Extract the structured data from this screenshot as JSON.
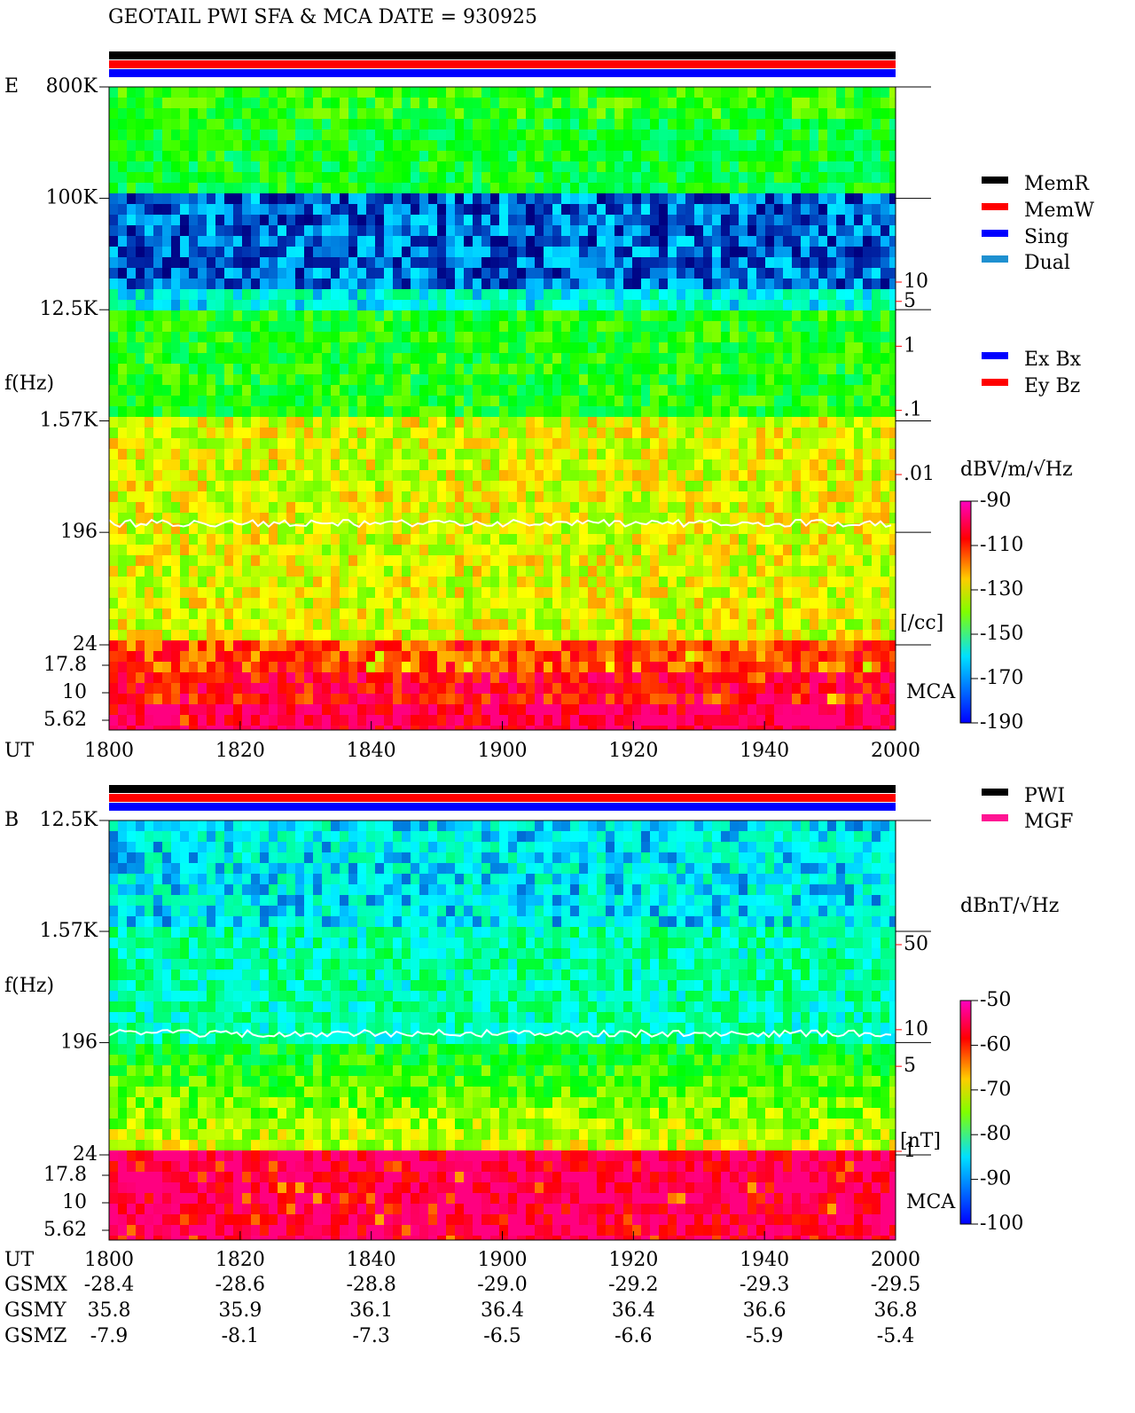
{
  "chart_data": [
    {
      "type": "spectrogram",
      "title": "GEOTAIL  PWI SFA & MCA   DATE = 930925",
      "panel_label": "E",
      "ylabel": "f(Hz)",
      "xlabel": "UT",
      "log_y": true,
      "ylim": [
        24,
        800000
      ],
      "yticks": [
        {
          "value": 800000,
          "label": "800K"
        },
        {
          "value": 100000,
          "label": "100K"
        },
        {
          "value": 12500,
          "label": "12.5K"
        },
        {
          "value": 1570,
          "label": "1.57K"
        },
        196,
        24
      ],
      "mca_label": "MCA",
      "mca_yticks": [
        17.8,
        10,
        5.62
      ],
      "categories": [
        "1800",
        "1820",
        "1840",
        "1900",
        "1920",
        "1940",
        "2000"
      ],
      "colorbar": {
        "label": "dBV/m/√Hz",
        "lim": [
          -190,
          -90
        ],
        "ticks": [
          -90,
          -110,
          -130,
          -150,
          -170,
          -190
        ]
      },
      "y2lim": [
        0.01,
        10
      ],
      "y2ticks": [
        10,
        5,
        1,
        {
          "value": 0.1,
          "label": ".1"
        },
        {
          "value": 0.01,
          "label": ".01"
        }
      ],
      "y2label": "[/cc]",
      "y2color": "#ff0000",
      "legend": [
        {
          "name": "MemR",
          "color": "#000000"
        },
        {
          "name": "MemW",
          "color": "#ff0000"
        },
        {
          "name": "Sing",
          "color": "#0000ff"
        },
        {
          "name": "Dual",
          "color": "#1e90d0"
        }
      ],
      "legend2": [
        {
          "name": "Ex Bx",
          "color": "#0000ff"
        },
        {
          "name": "Ey Bz",
          "color": "#ff0000"
        }
      ]
    },
    {
      "type": "spectrogram",
      "panel_label": "B",
      "ylabel": "f(Hz)",
      "xlabel": "UT",
      "log_y": true,
      "ylim": [
        24,
        12500
      ],
      "yticks": [
        {
          "value": 12500,
          "label": "12.5K"
        },
        {
          "value": 1570,
          "label": "1.57K"
        },
        196,
        24
      ],
      "mca_label": "MCA",
      "mca_yticks": [
        17.8,
        10,
        5.62
      ],
      "categories": [
        "1800",
        "1820",
        "1840",
        "1900",
        "1920",
        "1940",
        "2000"
      ],
      "colorbar": {
        "label": "dBnT/√Hz",
        "lim": [
          -100,
          -50
        ],
        "ticks": [
          -50,
          -60,
          -70,
          -80,
          -90,
          -100
        ]
      },
      "y2lim": [
        1,
        50
      ],
      "y2ticks": [
        50,
        10,
        5,
        1
      ],
      "y2label": "[nT]",
      "y2color": "#ff0000",
      "legend": [
        {
          "name": "PWI",
          "color": "#000000"
        },
        {
          "name": "MGF",
          "color": "#ff1493"
        }
      ]
    }
  ],
  "orbit": {
    "labels": [
      "GSMX",
      "GSMY",
      "GSMZ"
    ],
    "rows": [
      [
        "-28.4",
        "-28.6",
        "-28.8",
        "-29.0",
        "-29.2",
        "-29.3",
        "-29.5"
      ],
      [
        "35.8",
        "35.9",
        "36.1",
        "36.4",
        "36.4",
        "36.6",
        "36.8"
      ],
      [
        "-7.9",
        "-8.1",
        "-7.3",
        "-6.5",
        "-6.6",
        "-5.9",
        "-5.4"
      ]
    ]
  }
}
